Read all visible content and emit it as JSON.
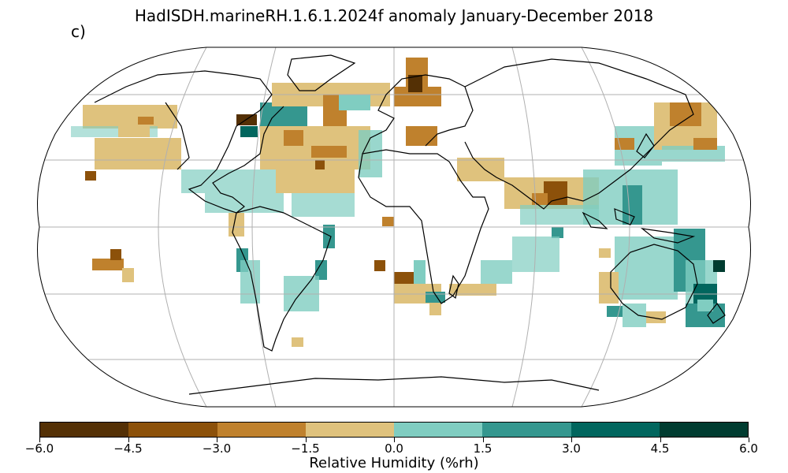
{
  "title": "HadISDH.marineRH.1.6.1.2024f anomaly January-December 2018",
  "panel_label": "c)",
  "colorbar": {
    "label": "Relative Humidity (%rh)",
    "ticks": [
      "−6.0",
      "−4.5",
      "−3.0",
      "−1.5",
      "0.0",
      "1.5",
      "3.0",
      "4.5",
      "6.0"
    ],
    "colors": [
      "#543005",
      "#8c510a",
      "#bf812d",
      "#dfc27d",
      "#80cdc1",
      "#35978f",
      "#01665e",
      "#003c30"
    ]
  },
  "map": {
    "projection": "Robinson",
    "land_fill": "none",
    "coastline_color": "#000000",
    "gridline_color": "#b0b0b0",
    "legend_bins": [
      "-6.0 to -4.5",
      "-4.5 to -3.0",
      "-3.0 to -1.5",
      "-1.5 to 0.0",
      "0.0 to 1.5",
      "1.5 to 3.0",
      "3.0 to 4.5",
      "4.5 to 6.0"
    ]
  }
}
